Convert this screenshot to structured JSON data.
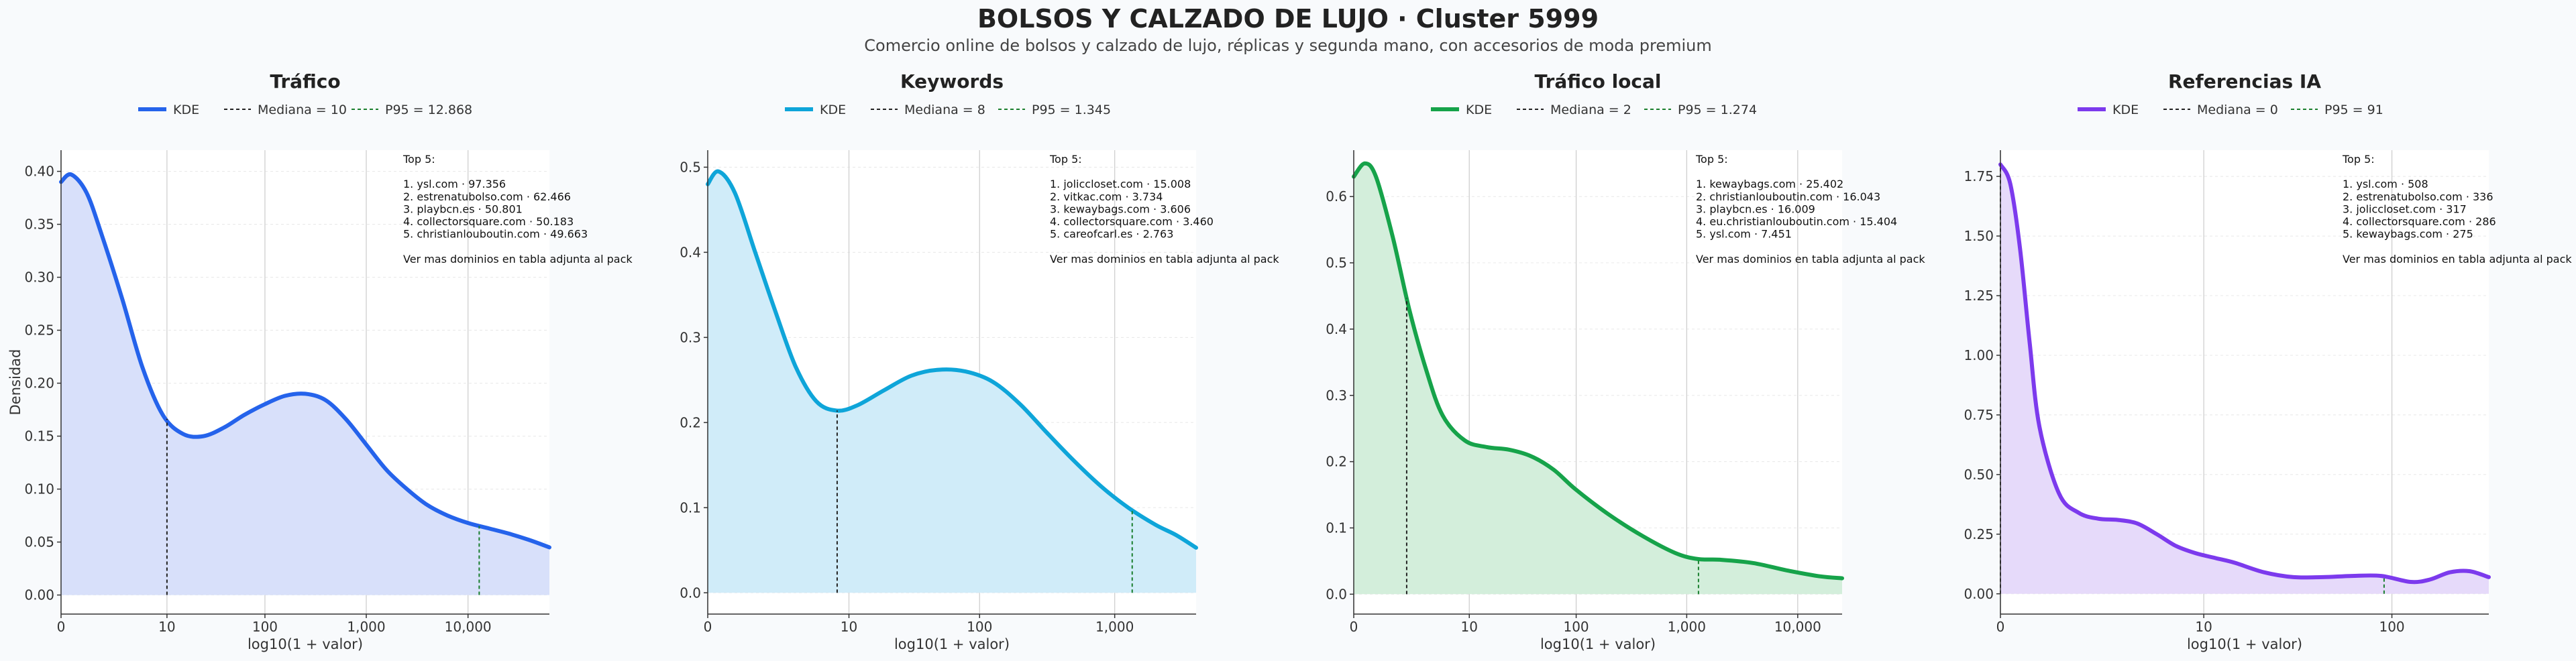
{
  "title": "BOLSOS Y CALZADO DE LUJO · Cluster 5999",
  "subtitle": "Comercio online de bolsos y calzado de lujo, réplicas y segunda mano, con accesorios de moda premium",
  "chart_data": [
    {
      "type": "area",
      "title": "Tráfico",
      "color": "#2563eb",
      "fill": "#d8e0fa",
      "xlabel": "log10(1 + valor)",
      "ylabel": "Densidad",
      "xlim": [
        0,
        4.8
      ],
      "ylim": [
        -0.018,
        0.42
      ],
      "xticks": [
        {
          "v": 0,
          "label": "0"
        },
        {
          "v": 1.041,
          "label": "10"
        },
        {
          "v": 2.004,
          "label": "100"
        },
        {
          "v": 3.0,
          "label": "1,000"
        },
        {
          "v": 4.0,
          "label": "10,000"
        }
      ],
      "yticks": [
        {
          "v": 0,
          "label": "0.00"
        },
        {
          "v": 0.05,
          "label": "0.05"
        },
        {
          "v": 0.1,
          "label": "0.10"
        },
        {
          "v": 0.15,
          "label": "0.15"
        },
        {
          "v": 0.2,
          "label": "0.20"
        },
        {
          "v": 0.25,
          "label": "0.25"
        },
        {
          "v": 0.3,
          "label": "0.30"
        },
        {
          "v": 0.35,
          "label": "0.35"
        },
        {
          "v": 0.4,
          "label": "0.40"
        }
      ],
      "legend": {
        "kde": "KDE",
        "median": "Mediana = 10",
        "p95": "P95 = 12.868"
      },
      "median": 1.041,
      "p95": 4.11,
      "x": [
        0,
        0.1,
        0.25,
        0.4,
        0.6,
        0.8,
        1.0,
        1.2,
        1.4,
        1.6,
        1.8,
        2.0,
        2.2,
        2.4,
        2.6,
        2.8,
        3.0,
        3.2,
        3.4,
        3.6,
        3.8,
        4.0,
        4.2,
        4.4,
        4.6,
        4.8
      ],
      "y": [
        0.39,
        0.397,
        0.38,
        0.34,
        0.28,
        0.215,
        0.17,
        0.152,
        0.15,
        0.158,
        0.17,
        0.18,
        0.188,
        0.19,
        0.184,
        0.166,
        0.142,
        0.118,
        0.1,
        0.085,
        0.075,
        0.068,
        0.063,
        0.058,
        0.052,
        0.045
      ],
      "annotation": [
        "Top 5:",
        "",
        "1. ysl.com · 97.356",
        "2. estrenatubolso.com · 62.466",
        "3. playbcn.es · 50.801",
        "4. collectorsquare.com · 50.183",
        "5. christianlouboutin.com · 49.663",
        "",
        "Ver mas dominios en tabla adjunta al pack"
      ]
    },
    {
      "type": "area",
      "title": "Keywords",
      "color": "#0ea5d9",
      "fill": "#d0ecf9",
      "xlabel": "log10(1 + valor)",
      "ylabel": "",
      "xlim": [
        0,
        3.6
      ],
      "ylim": [
        -0.025,
        0.52
      ],
      "xticks": [
        {
          "v": 0,
          "label": "0"
        },
        {
          "v": 1.041,
          "label": "10"
        },
        {
          "v": 2.004,
          "label": "100"
        },
        {
          "v": 3.0,
          "label": "1,000"
        }
      ],
      "yticks": [
        {
          "v": 0,
          "label": "0.0"
        },
        {
          "v": 0.1,
          "label": "0.1"
        },
        {
          "v": 0.2,
          "label": "0.2"
        },
        {
          "v": 0.3,
          "label": "0.3"
        },
        {
          "v": 0.4,
          "label": "0.4"
        },
        {
          "v": 0.5,
          "label": "0.5"
        }
      ],
      "legend": {
        "kde": "KDE",
        "median": "Mediana = 8",
        "p95": "P95 = 1.345"
      },
      "median": 0.954,
      "p95": 3.129,
      "x": [
        0,
        0.08,
        0.2,
        0.35,
        0.5,
        0.65,
        0.8,
        0.95,
        1.1,
        1.3,
        1.5,
        1.7,
        1.9,
        2.1,
        2.3,
        2.5,
        2.7,
        2.9,
        3.1,
        3.3,
        3.45,
        3.6
      ],
      "y": [
        0.48,
        0.495,
        0.47,
        0.4,
        0.33,
        0.265,
        0.225,
        0.214,
        0.22,
        0.238,
        0.255,
        0.262,
        0.26,
        0.248,
        0.222,
        0.188,
        0.155,
        0.125,
        0.1,
        0.08,
        0.068,
        0.053
      ],
      "annotation": [
        "Top 5:",
        "",
        "1. joliccloset.com · 15.008",
        "2. vitkac.com · 3.734",
        "3. kewaybags.com · 3.606",
        "4. collectorsquare.com · 3.460",
        "5. careofcarl.es · 2.763",
        "",
        "Ver mas dominios en tabla adjunta al pack"
      ]
    },
    {
      "type": "area",
      "title": "Tráfico local",
      "color": "#16a34a",
      "fill": "#d3eedb",
      "xlabel": "log10(1 + valor)",
      "ylabel": "",
      "xlim": [
        0,
        4.4
      ],
      "ylim": [
        -0.03,
        0.67
      ],
      "xticks": [
        {
          "v": 0,
          "label": "0"
        },
        {
          "v": 1.041,
          "label": "10"
        },
        {
          "v": 2.004,
          "label": "100"
        },
        {
          "v": 3.0,
          "label": "1,000"
        },
        {
          "v": 4.0,
          "label": "10,000"
        }
      ],
      "yticks": [
        {
          "v": 0,
          "label": "0.0"
        },
        {
          "v": 0.1,
          "label": "0.1"
        },
        {
          "v": 0.2,
          "label": "0.2"
        },
        {
          "v": 0.3,
          "label": "0.3"
        },
        {
          "v": 0.4,
          "label": "0.4"
        },
        {
          "v": 0.5,
          "label": "0.5"
        },
        {
          "v": 0.6,
          "label": "0.6"
        }
      ],
      "legend": {
        "kde": "KDE",
        "median": "Mediana = 2",
        "p95": "P95 = 1.274"
      },
      "median": 0.477,
      "p95": 3.106,
      "x": [
        0,
        0.1,
        0.2,
        0.35,
        0.5,
        0.65,
        0.8,
        1.0,
        1.2,
        1.4,
        1.6,
        1.8,
        2.0,
        2.3,
        2.6,
        2.9,
        3.1,
        3.3,
        3.6,
        3.9,
        4.2,
        4.4
      ],
      "y": [
        0.63,
        0.65,
        0.63,
        0.54,
        0.43,
        0.34,
        0.27,
        0.232,
        0.222,
        0.218,
        0.208,
        0.188,
        0.158,
        0.12,
        0.088,
        0.062,
        0.053,
        0.052,
        0.047,
        0.036,
        0.027,
        0.024
      ],
      "annotation": [
        "Top 5:",
        "",
        "1. kewaybags.com · 25.402",
        "2. christianlouboutin.com · 16.043",
        "3. playbcn.es · 16.009",
        "4. eu.christianlouboutin.com · 15.404",
        "5. ysl.com · 7.451",
        "",
        "Ver mas dominios en tabla adjunta al pack"
      ]
    },
    {
      "type": "area",
      "title": "Referencias IA",
      "color": "#7c3aed",
      "fill": "#e6dafa",
      "xlabel": "log10(1 + valor)",
      "ylabel": "",
      "xlim": [
        0,
        2.5
      ],
      "ylim": [
        -0.085,
        1.86
      ],
      "xticks": [
        {
          "v": 0,
          "label": "0"
        },
        {
          "v": 1.041,
          "label": "10"
        },
        {
          "v": 2.004,
          "label": "100"
        }
      ],
      "yticks": [
        {
          "v": 0,
          "label": "0.00"
        },
        {
          "v": 0.25,
          "label": "0.25"
        },
        {
          "v": 0.5,
          "label": "0.50"
        },
        {
          "v": 0.75,
          "label": "0.75"
        },
        {
          "v": 1.0,
          "label": "1.00"
        },
        {
          "v": 1.25,
          "label": "1.25"
        },
        {
          "v": 1.5,
          "label": "1.50"
        },
        {
          "v": 1.75,
          "label": "1.75"
        }
      ],
      "legend": {
        "kde": "KDE",
        "median": "Mediana = 0",
        "p95": "P95 = 91"
      },
      "median": 0,
      "p95": 1.964,
      "x": [
        0,
        0.05,
        0.1,
        0.15,
        0.2,
        0.3,
        0.4,
        0.5,
        0.6,
        0.7,
        0.8,
        0.9,
        1.0,
        1.1,
        1.2,
        1.35,
        1.5,
        1.65,
        1.8,
        1.95,
        2.1,
        2.2,
        2.3,
        2.4,
        2.5
      ],
      "y": [
        1.8,
        1.72,
        1.45,
        1.05,
        0.7,
        0.42,
        0.34,
        0.315,
        0.31,
        0.295,
        0.25,
        0.2,
        0.17,
        0.15,
        0.13,
        0.09,
        0.07,
        0.07,
        0.075,
        0.075,
        0.05,
        0.06,
        0.09,
        0.095,
        0.07
      ],
      "annotation": [
        "Top 5:",
        "",
        "1. ysl.com · 508",
        "2. estrenatubolso.com · 336",
        "3. joliccloset.com · 317",
        "4. collectorsquare.com · 286",
        "5. kewaybags.com · 275",
        "",
        "Ver mas dominios en tabla adjunta al pack"
      ]
    }
  ]
}
